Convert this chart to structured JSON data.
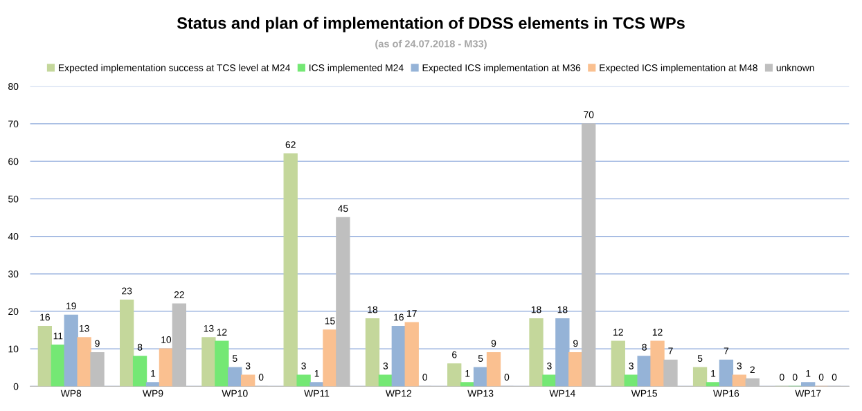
{
  "chart_data": {
    "type": "bar",
    "title": "Status and plan of implementation of DDSS elements in TCS WPs",
    "subtitle": "(as of 24.07.2018 - M33)",
    "categories": [
      "WP8",
      "WP9",
      "WP10",
      "WP11",
      "WP12",
      "WP13",
      "WP14",
      "WP15",
      "WP16",
      "WP17"
    ],
    "series": [
      {
        "name": "Expected implementation success at TCS level at M24",
        "color": "#c4d79b",
        "values": [
          16,
          23,
          13,
          62,
          18,
          6,
          18,
          12,
          5,
          0
        ]
      },
      {
        "name": "ICS implemented M24",
        "color": "#74e874",
        "values": [
          11,
          8,
          12,
          3,
          3,
          1,
          3,
          3,
          1,
          0
        ]
      },
      {
        "name": "Expected ICS implementation at M36",
        "color": "#95b3d7",
        "values": [
          19,
          1,
          5,
          1,
          16,
          5,
          18,
          8,
          7,
          1
        ]
      },
      {
        "name": "Expected ICS implementation at M48",
        "color": "#fac090",
        "values": [
          13,
          10,
          3,
          15,
          17,
          9,
          9,
          12,
          3,
          0
        ]
      },
      {
        "name": "unknown",
        "color": "#bfbfbf",
        "values": [
          9,
          22,
          0,
          45,
          0,
          0,
          70,
          7,
          2,
          0
        ]
      }
    ],
    "ylim": [
      0,
      80
    ],
    "yticks": [
      0,
      10,
      20,
      30,
      40,
      50,
      60,
      70,
      80
    ],
    "grid": "y",
    "legend": "top",
    "data_labels": true
  }
}
